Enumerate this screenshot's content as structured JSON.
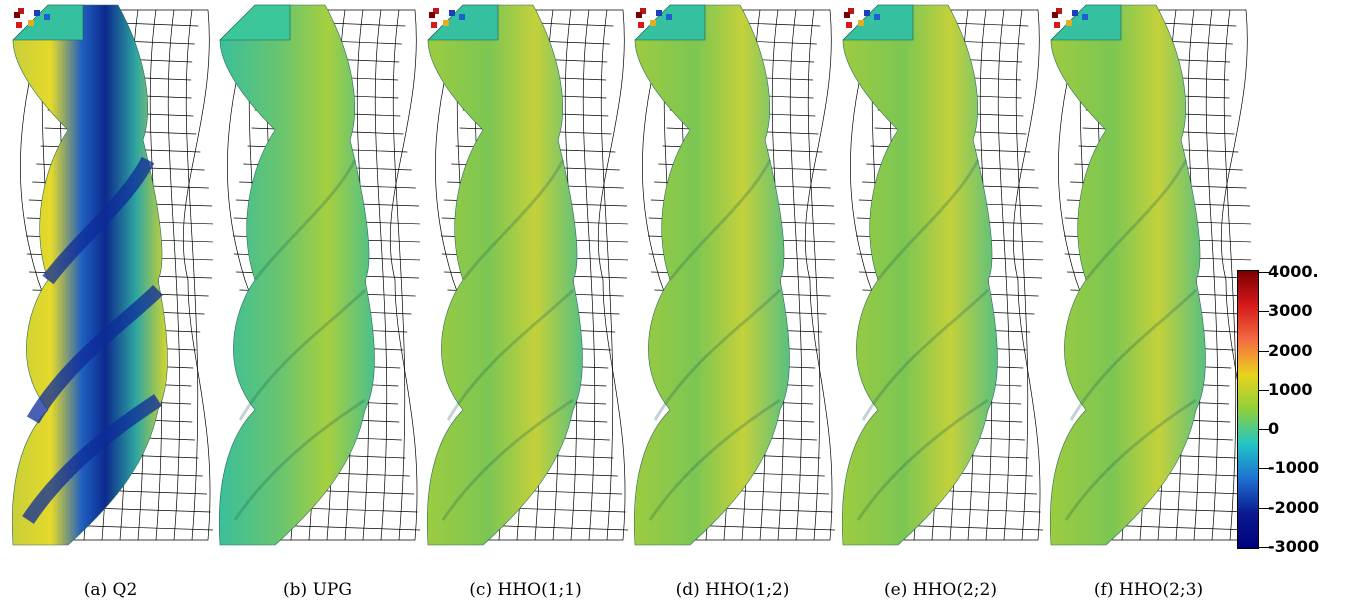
{
  "panels": [
    {
      "caption": "(a) Q2",
      "variant": "q2"
    },
    {
      "caption": "(b) UPG",
      "variant": "upg"
    },
    {
      "caption": "(c) HHO(1;1)",
      "variant": "hho"
    },
    {
      "caption": "(d) HHO(1;2)",
      "variant": "hho"
    },
    {
      "caption": "(e) HHO(2;2)",
      "variant": "hho"
    },
    {
      "caption": "(f) HHO(2;3)",
      "variant": "hho"
    }
  ],
  "colorbar": {
    "ticks": [
      "4000.",
      "3000",
      "2000",
      "1000",
      "0",
      "-1000",
      "-2000",
      "-3000"
    ],
    "colors": [
      "#7a0000",
      "#d7191c",
      "#f46d43",
      "#e8d21d",
      "#8fcf3a",
      "#21c6c6",
      "#1f6fd1",
      "#0b1a8f",
      "#00007f"
    ]
  }
}
